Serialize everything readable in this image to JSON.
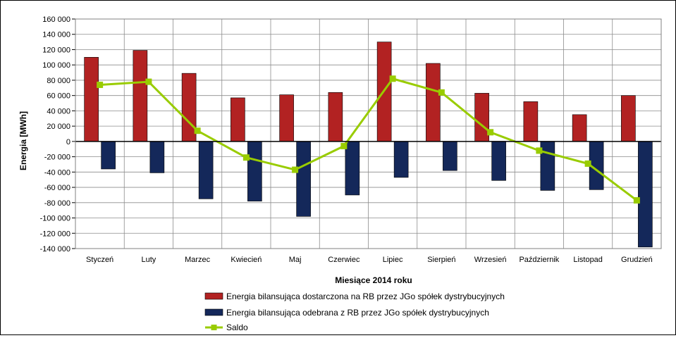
{
  "chart_data": {
    "type": "bar",
    "categories": [
      "Styczeń",
      "Luty",
      "Marzec",
      "Kwiecień",
      "Maj",
      "Czerwiec",
      "Lipiec",
      "Sierpień",
      "Wrzesień",
      "Październik",
      "Listopad",
      "Grudzień"
    ],
    "series": [
      {
        "name": "Energia bilansująca dostarczona na RB przez JGo spółek dystrybucyjnych",
        "type": "bar",
        "color": "#b22222",
        "values": [
          110000,
          119000,
          89000,
          57000,
          61000,
          64000,
          130000,
          102000,
          63000,
          52000,
          35000,
          60000
        ]
      },
      {
        "name": "Energia bilansująca odebrana z RB przez JGo spółek dystrybucyjnych",
        "type": "bar",
        "color": "#14285a",
        "values": [
          -36000,
          -41000,
          -75000,
          -78000,
          -98000,
          -70000,
          -47000,
          -38000,
          -51000,
          -64000,
          -63000,
          -138000
        ]
      },
      {
        "name": "Saldo",
        "type": "line",
        "color": "#99cc00",
        "values": [
          74000,
          78000,
          14000,
          -21000,
          -37000,
          -6000,
          82000,
          64000,
          12000,
          -12000,
          -29000,
          -77000
        ]
      }
    ],
    "ylabel": "Energia [MWh]",
    "xlabel": "Miesiące 2014 roku",
    "ylim": [
      -140000,
      160000
    ],
    "yticks": [
      "160 000",
      "140 000",
      "120 000",
      "100 000",
      "80 000",
      "60 000",
      "40 000",
      "20 000",
      "0",
      "-20 000",
      "-40 000",
      "-60 000",
      "-80 000",
      "-100 000",
      "-120 000",
      "-140 000"
    ],
    "grid": true,
    "legend_position": "bottom"
  }
}
